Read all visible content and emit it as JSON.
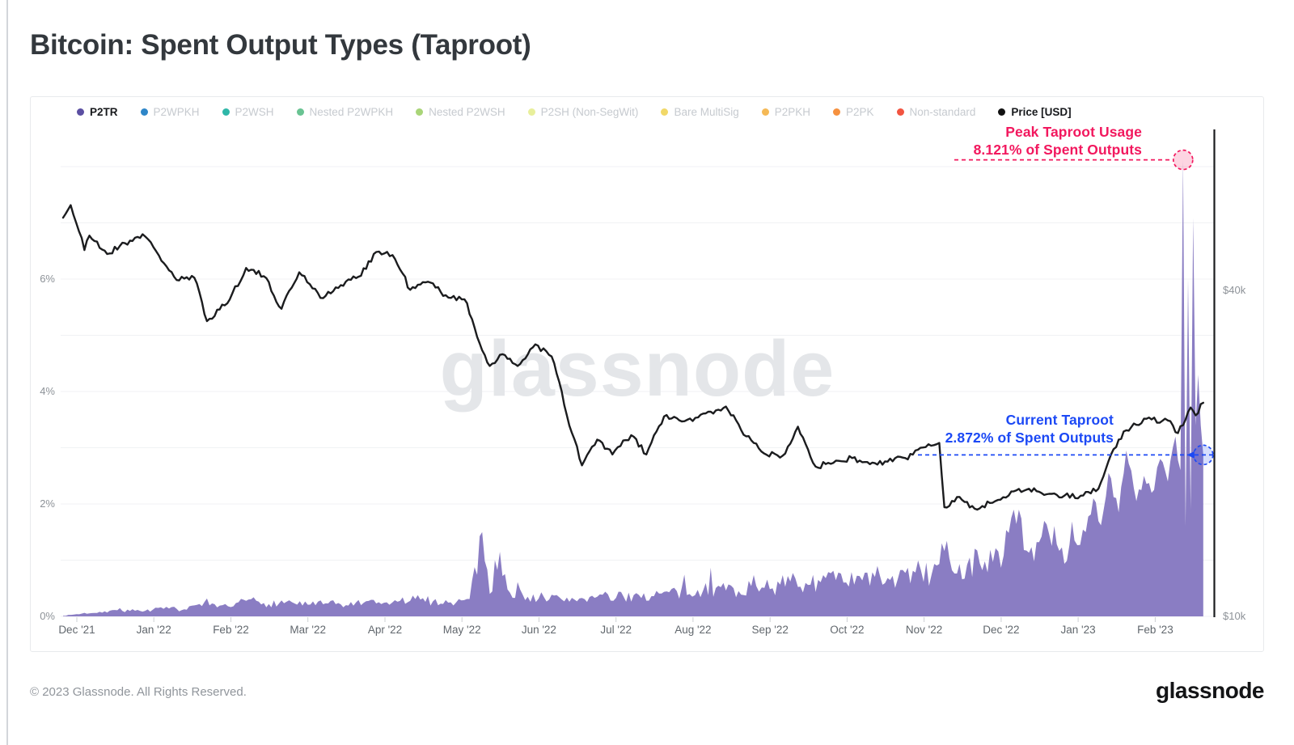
{
  "page": {
    "title": "Bitcoin: Spent Output Types (Taproot)",
    "footer_copyright": "© 2023 Glassnode. All Rights Reserved.",
    "brand_logo_text": "glassnode",
    "watermark_text": "glassnode"
  },
  "colors": {
    "taproot_area_fill": "#8a7dc3",
    "price_line": "#1b1c1e",
    "annotation_peak": "#f2185e",
    "annotation_current": "#1c49f5",
    "grid_line": "#f0f2f4",
    "axis_tick": "#cdd0d4",
    "axis_label": "#8d9298",
    "x_label": "#61676d",
    "watermark": "#e4e6e9",
    "legend_inactive_text": "#c6cacf",
    "legend_active_text": "#17191c"
  },
  "legend": {
    "items": [
      {
        "label": "P2TR",
        "color": "#5b4fa2",
        "active": true
      },
      {
        "label": "P2WPKH",
        "color": "#2e86c8",
        "active": false
      },
      {
        "label": "P2WSH",
        "color": "#2fb7a8",
        "active": false
      },
      {
        "label": "Nested P2WPKH",
        "color": "#69c392",
        "active": false
      },
      {
        "label": "Nested P2WSH",
        "color": "#a9d578",
        "active": false
      },
      {
        "label": "P2SH (Non-SegWit)",
        "color": "#e8ef9b",
        "active": false
      },
      {
        "label": "Bare MultiSig",
        "color": "#f1d868",
        "active": false
      },
      {
        "label": "P2PKH",
        "color": "#f5b956",
        "active": false
      },
      {
        "label": "P2PK",
        "color": "#f6913f",
        "active": false
      },
      {
        "label": "Non-standard",
        "color": "#f25440",
        "active": false
      },
      {
        "label": "Price [USD]",
        "color": "#111111",
        "active": true
      }
    ]
  },
  "chart_data": {
    "type": "area",
    "title": "Bitcoin: Spent Output Types (Taproot)",
    "grid": true,
    "x_axis": {
      "range": [
        "2021-11-26",
        "2023-02-20"
      ],
      "ticks": [
        {
          "label": "Dec '21",
          "date": "2021-12-01"
        },
        {
          "label": "Jan '22",
          "date": "2022-01-01"
        },
        {
          "label": "Feb '22",
          "date": "2022-02-01"
        },
        {
          "label": "Mar '22",
          "date": "2022-03-01"
        },
        {
          "label": "Apr '22",
          "date": "2022-04-01"
        },
        {
          "label": "May '22",
          "date": "2022-05-01"
        },
        {
          "label": "Jun '22",
          "date": "2022-06-01"
        },
        {
          "label": "Jul '22",
          "date": "2022-07-01"
        },
        {
          "label": "Aug '22",
          "date": "2022-08-01"
        },
        {
          "label": "Sep '22",
          "date": "2022-09-01"
        },
        {
          "label": "Oct '22",
          "date": "2022-10-01"
        },
        {
          "label": "Nov '22",
          "date": "2022-11-01"
        },
        {
          "label": "Dec '22",
          "date": "2022-12-01"
        },
        {
          "label": "Jan '23",
          "date": "2023-01-01"
        },
        {
          "label": "Feb '23",
          "date": "2023-02-01"
        }
      ]
    },
    "y_axis_left": {
      "unit": "% of spent outputs",
      "range": [
        0,
        8.7
      ],
      "ticks": [
        {
          "label": "0%",
          "value": 0
        },
        {
          "label": "2%",
          "value": 2
        },
        {
          "label": "4%",
          "value": 4
        },
        {
          "label": "6%",
          "value": 6
        }
      ]
    },
    "y_axis_right": {
      "unit": "USD",
      "scale": "log",
      "ticks": [
        {
          "label": "$10k",
          "value": 10000
        },
        {
          "label": "$40k",
          "value": 40000
        }
      ]
    },
    "series": [
      {
        "name": "P2TR",
        "type": "area",
        "unit": "%",
        "color": "#8a7dc3",
        "points": [
          [
            "2021-11-26",
            0.01
          ],
          [
            "2021-12-03",
            0.05
          ],
          [
            "2021-12-10",
            0.08
          ],
          [
            "2021-12-17",
            0.11
          ],
          [
            "2021-12-24",
            0.1
          ],
          [
            "2021-12-31",
            0.12
          ],
          [
            "2022-01-07",
            0.14
          ],
          [
            "2022-01-14",
            0.12
          ],
          [
            "2022-01-19",
            0.22
          ],
          [
            "2022-01-26",
            0.16
          ],
          [
            "2022-02-02",
            0.18
          ],
          [
            "2022-02-08",
            0.3
          ],
          [
            "2022-02-16",
            0.22
          ],
          [
            "2022-02-23",
            0.26
          ],
          [
            "2022-03-02",
            0.21
          ],
          [
            "2022-03-09",
            0.23
          ],
          [
            "2022-03-16",
            0.2
          ],
          [
            "2022-03-23",
            0.24
          ],
          [
            "2022-03-30",
            0.22
          ],
          [
            "2022-04-06",
            0.26
          ],
          [
            "2022-04-13",
            0.31
          ],
          [
            "2022-04-20",
            0.27
          ],
          [
            "2022-04-27",
            0.25
          ],
          [
            "2022-05-04",
            0.31
          ],
          [
            "2022-05-09",
            1.5
          ],
          [
            "2022-05-12",
            0.4
          ],
          [
            "2022-05-16",
            1.15
          ],
          [
            "2022-05-20",
            0.42
          ],
          [
            "2022-05-27",
            0.35
          ],
          [
            "2022-06-03",
            0.34
          ],
          [
            "2022-06-10",
            0.3
          ],
          [
            "2022-06-17",
            0.32
          ],
          [
            "2022-06-24",
            0.35
          ],
          [
            "2022-07-01",
            0.33
          ],
          [
            "2022-07-08",
            0.38
          ],
          [
            "2022-07-15",
            0.36
          ],
          [
            "2022-07-22",
            0.43
          ],
          [
            "2022-07-29",
            0.38
          ],
          [
            "2022-08-05",
            0.46
          ],
          [
            "2022-08-12",
            0.52
          ],
          [
            "2022-08-19",
            0.45
          ],
          [
            "2022-08-26",
            0.54
          ],
          [
            "2022-09-02",
            0.5
          ],
          [
            "2022-09-09",
            0.62
          ],
          [
            "2022-09-16",
            0.56
          ],
          [
            "2022-09-23",
            0.68
          ],
          [
            "2022-09-30",
            0.6
          ],
          [
            "2022-10-07",
            0.64
          ],
          [
            "2022-10-14",
            0.72
          ],
          [
            "2022-10-21",
            0.66
          ],
          [
            "2022-10-28",
            0.78
          ],
          [
            "2022-11-04",
            0.75
          ],
          [
            "2022-11-08",
            1.3
          ],
          [
            "2022-11-12",
            0.82
          ],
          [
            "2022-11-18",
            0.92
          ],
          [
            "2022-11-25",
            0.98
          ],
          [
            "2022-12-02",
            1.08
          ],
          [
            "2022-12-06",
            1.9
          ],
          [
            "2022-12-10",
            1.18
          ],
          [
            "2022-12-16",
            1.32
          ],
          [
            "2022-12-23",
            1.28
          ],
          [
            "2022-12-30",
            1.35
          ],
          [
            "2023-01-04",
            1.5
          ],
          [
            "2023-01-07",
            2.1
          ],
          [
            "2023-01-10",
            1.62
          ],
          [
            "2023-01-13",
            2.55
          ],
          [
            "2023-01-17",
            1.85
          ],
          [
            "2023-01-20",
            2.95
          ],
          [
            "2023-01-24",
            2.05
          ],
          [
            "2023-01-27",
            2.5
          ],
          [
            "2023-01-31",
            2.25
          ],
          [
            "2023-02-03",
            2.8
          ],
          [
            "2023-02-06",
            2.4
          ],
          [
            "2023-02-09",
            3.2
          ],
          [
            "2023-02-11",
            2.6
          ],
          [
            "2023-02-12",
            8.121
          ],
          [
            "2023-02-13",
            1.6
          ],
          [
            "2023-02-14",
            6.0
          ],
          [
            "2023-02-15",
            1.9
          ],
          [
            "2023-02-16",
            7.09
          ],
          [
            "2023-02-17",
            3.4
          ],
          [
            "2023-02-18",
            4.3
          ],
          [
            "2023-02-19",
            3.4
          ],
          [
            "2023-02-20",
            2.872
          ]
        ]
      },
      {
        "name": "Price [USD]",
        "type": "line",
        "unit": "USD",
        "color": "#1b1c1e",
        "points": [
          [
            "2021-11-26",
            54500
          ],
          [
            "2021-11-29",
            57500
          ],
          [
            "2021-12-04",
            47500
          ],
          [
            "2021-12-06",
            50500
          ],
          [
            "2021-12-13",
            46700
          ],
          [
            "2021-12-20",
            48900
          ],
          [
            "2021-12-27",
            50800
          ],
          [
            "2022-01-03",
            46400
          ],
          [
            "2022-01-10",
            41800
          ],
          [
            "2022-01-17",
            42200
          ],
          [
            "2022-01-22",
            35100
          ],
          [
            "2022-01-31",
            38500
          ],
          [
            "2022-02-07",
            44000
          ],
          [
            "2022-02-14",
            42500
          ],
          [
            "2022-02-21",
            37000
          ],
          [
            "2022-02-28",
            43200
          ],
          [
            "2022-03-07",
            38700
          ],
          [
            "2022-03-14",
            40900
          ],
          [
            "2022-03-21",
            42400
          ],
          [
            "2022-03-28",
            47100
          ],
          [
            "2022-04-04",
            46500
          ],
          [
            "2022-04-11",
            40100
          ],
          [
            "2022-04-18",
            41500
          ],
          [
            "2022-04-25",
            39200
          ],
          [
            "2022-05-02",
            38500
          ],
          [
            "2022-05-09",
            31000
          ],
          [
            "2022-05-12",
            29000
          ],
          [
            "2022-05-16",
            30400
          ],
          [
            "2022-05-23",
            29000
          ],
          [
            "2022-05-30",
            31800
          ],
          [
            "2022-06-06",
            30200
          ],
          [
            "2022-06-13",
            22500
          ],
          [
            "2022-06-18",
            19000
          ],
          [
            "2022-06-24",
            21200
          ],
          [
            "2022-06-30",
            19900
          ],
          [
            "2022-07-07",
            21600
          ],
          [
            "2022-07-13",
            19900
          ],
          [
            "2022-07-20",
            23400
          ],
          [
            "2022-07-27",
            22900
          ],
          [
            "2022-08-03",
            23300
          ],
          [
            "2022-08-10",
            24000
          ],
          [
            "2022-08-14",
            24400
          ],
          [
            "2022-08-22",
            21500
          ],
          [
            "2022-08-29",
            20000
          ],
          [
            "2022-09-06",
            19800
          ],
          [
            "2022-09-12",
            22400
          ],
          [
            "2022-09-19",
            18900
          ],
          [
            "2022-09-26",
            19200
          ],
          [
            "2022-10-03",
            19600
          ],
          [
            "2022-10-10",
            19100
          ],
          [
            "2022-10-17",
            19300
          ],
          [
            "2022-10-24",
            19600
          ],
          [
            "2022-10-31",
            20500
          ],
          [
            "2022-11-07",
            20900
          ],
          [
            "2022-11-09",
            15900
          ],
          [
            "2022-11-14",
            16600
          ],
          [
            "2022-11-21",
            15800
          ],
          [
            "2022-11-28",
            16200
          ],
          [
            "2022-12-05",
            17000
          ],
          [
            "2022-12-12",
            17200
          ],
          [
            "2022-12-19",
            16800
          ],
          [
            "2022-12-26",
            16700
          ],
          [
            "2023-01-02",
            16700
          ],
          [
            "2023-01-09",
            17200
          ],
          [
            "2023-01-14",
            19900
          ],
          [
            "2023-01-17",
            21200
          ],
          [
            "2023-01-23",
            22700
          ],
          [
            "2023-01-30",
            23100
          ],
          [
            "2023-02-06",
            23000
          ],
          [
            "2023-02-10",
            21800
          ],
          [
            "2023-02-15",
            24300
          ],
          [
            "2023-02-17",
            23500
          ],
          [
            "2023-02-20",
            24800
          ]
        ]
      }
    ],
    "annotations": [
      {
        "id": "peak",
        "lines": [
          "Peak Taproot Usage",
          "8.121% of Spent Outputs"
        ],
        "color": "#f2185e",
        "point": {
          "date": "2023-02-12",
          "value": 8.121
        }
      },
      {
        "id": "current",
        "lines": [
          "Current Taproot",
          "2.872% of Spent Outputs"
        ],
        "color": "#1c49f5",
        "point": {
          "date": "2023-02-20",
          "value": 2.872
        }
      }
    ]
  }
}
